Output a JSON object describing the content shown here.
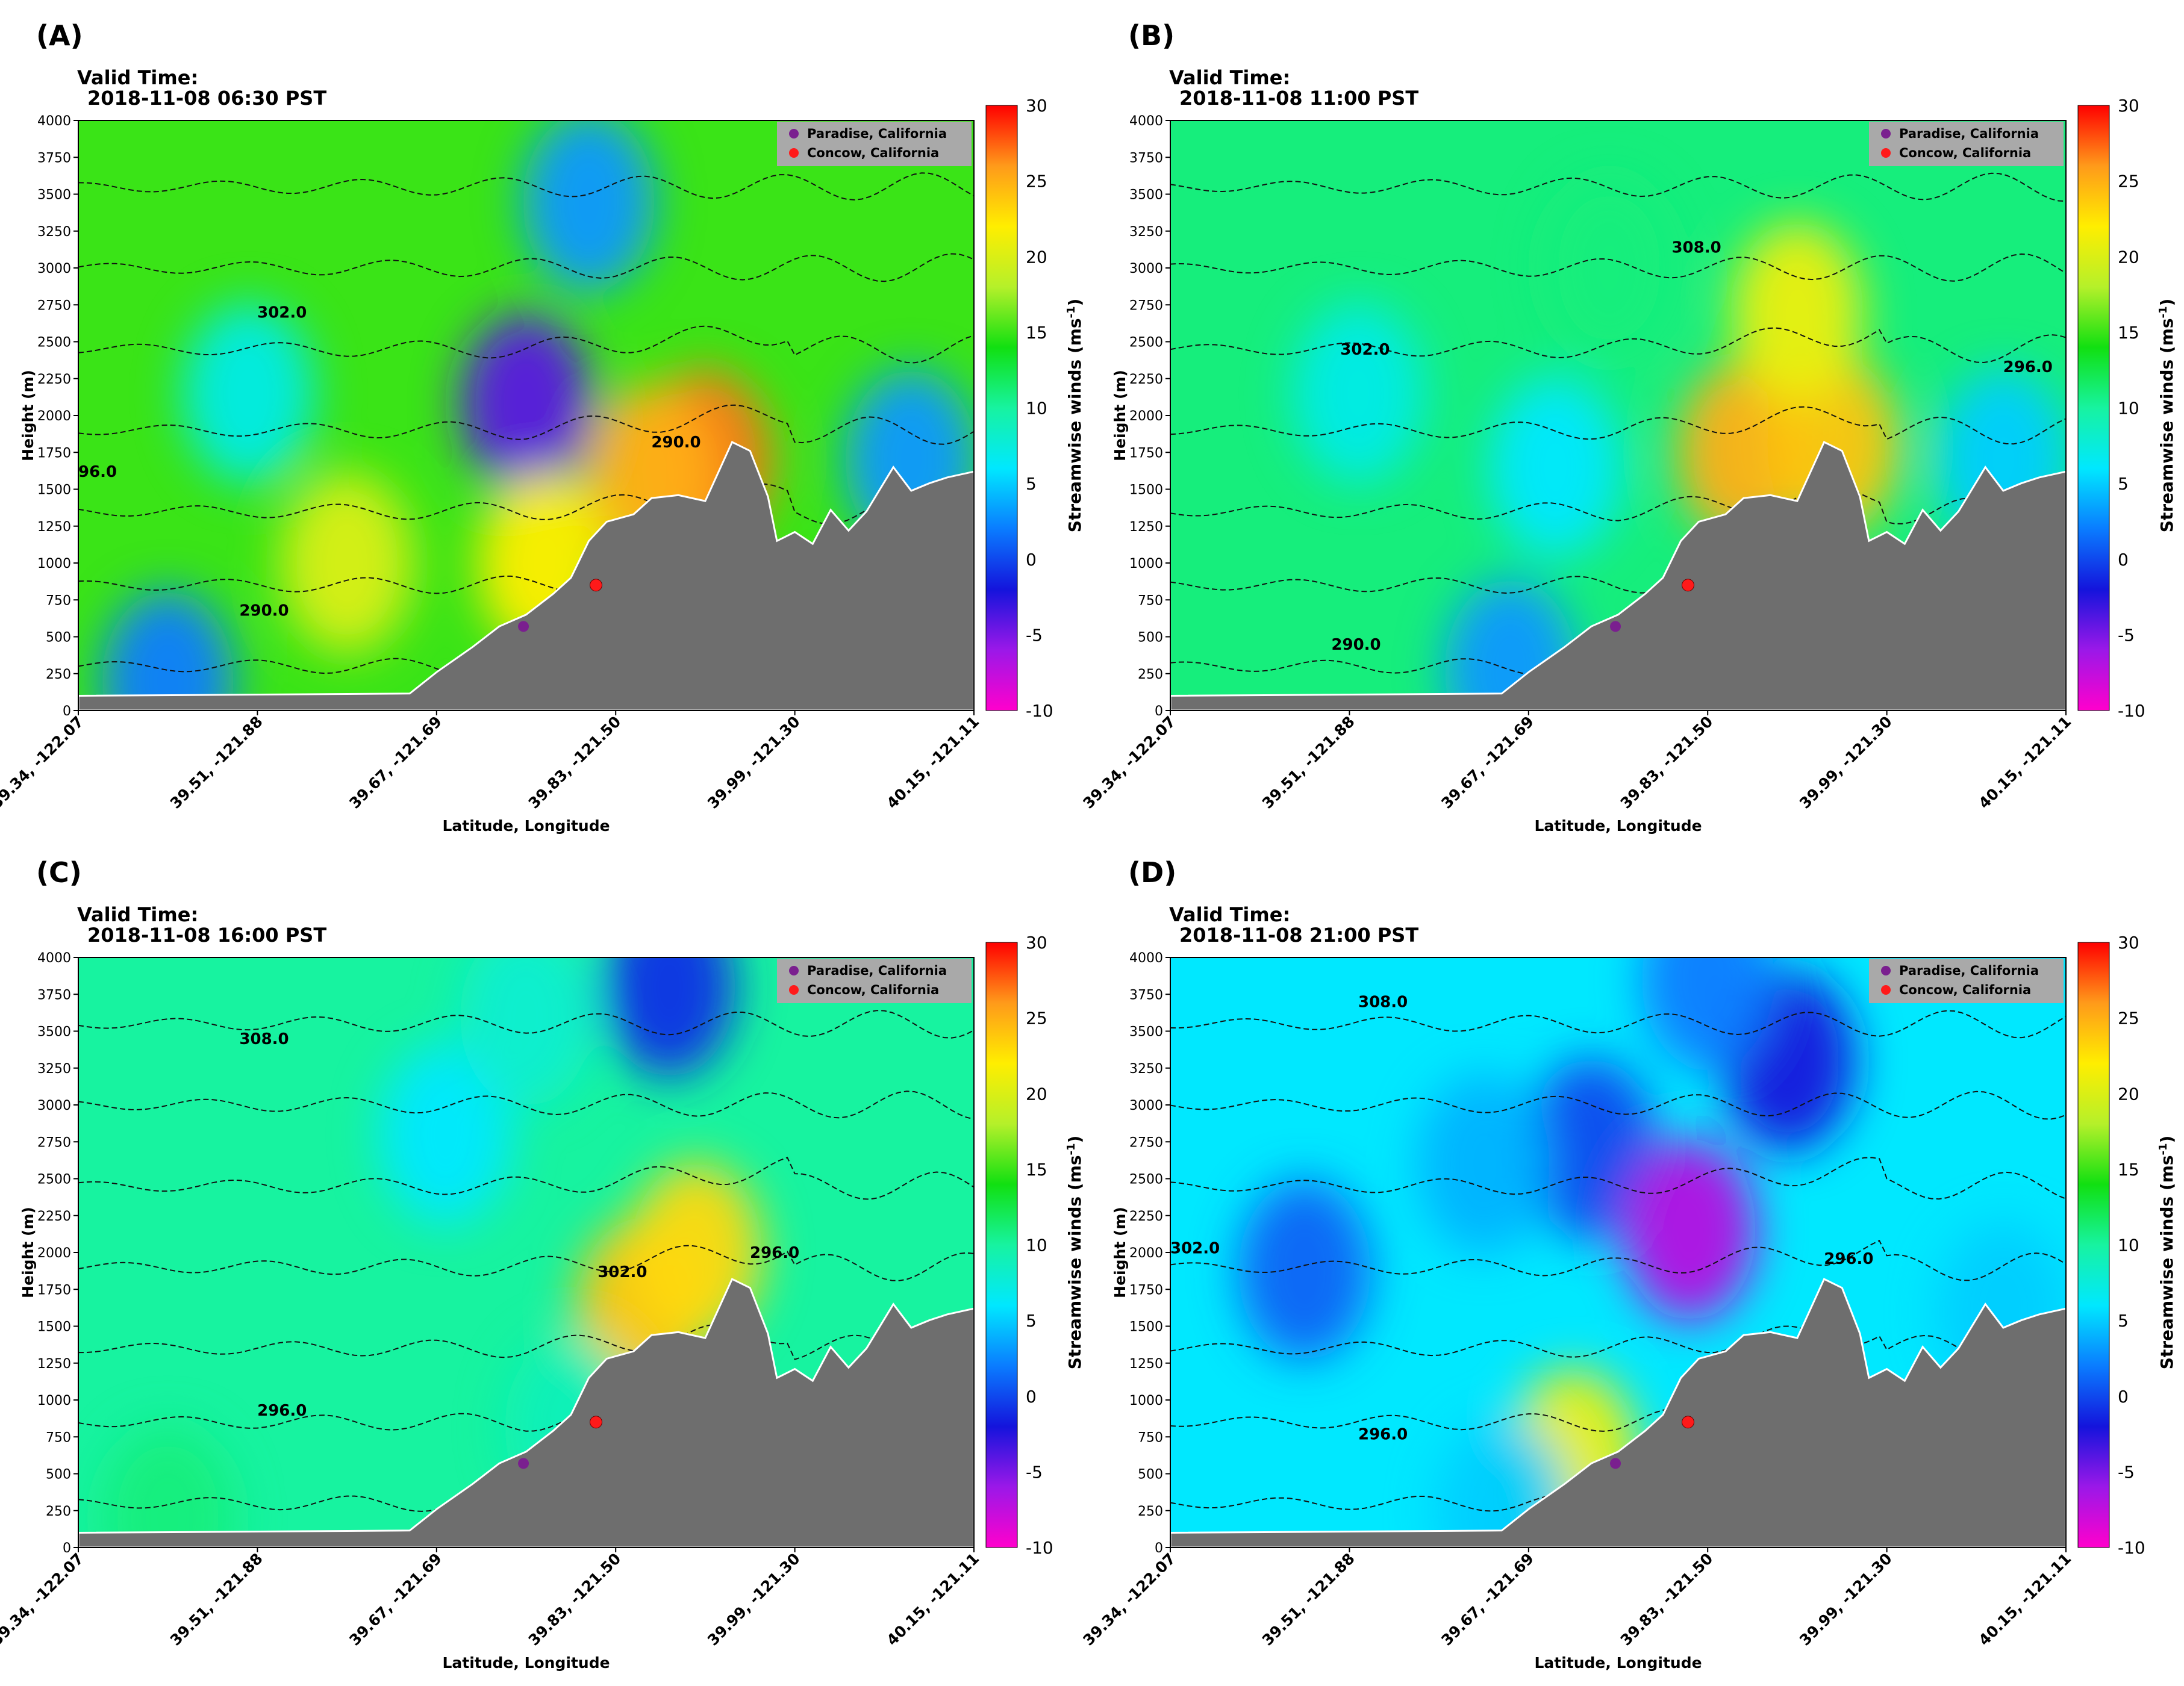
{
  "colors": {
    "terrain": "#6e6e6e",
    "paradise_marker": "#7a1f8f",
    "concow_marker": "#ff1a1a",
    "legend_bg": "#a9a9a9",
    "contour": "#111111"
  },
  "shared": {
    "colorbar_label": "Streamwise winds (ms",
    "colorbar_label_sup": "-1",
    "colorbar_label_close": ")",
    "colorbar_ticks": [
      -10,
      -5,
      0,
      5,
      10,
      15,
      20,
      25,
      30
    ],
    "colormap": [
      "#ff00cc",
      "#9b18e8",
      "#1414dc",
      "#0a7cff",
      "#00e8ff",
      "#17f3a0",
      "#11e011",
      "#b5f02a",
      "#ffee00",
      "#ff9a1a",
      "#ff0000"
    ],
    "y_ticks": [
      0,
      250,
      500,
      750,
      1000,
      1250,
      1500,
      1750,
      2000,
      2250,
      2500,
      2750,
      3000,
      3250,
      3500,
      3750,
      4000
    ],
    "x_ticks": [
      "39.34, -122.07",
      "39.51, -121.88",
      "39.67, -121.69",
      "39.83, -121.50",
      "39.99, -121.30",
      "40.15, -121.11"
    ],
    "xlabel": "Latitude, Longitude",
    "ylabel": "Height (m)",
    "valid_time_label": "Valid Time:",
    "legend": [
      "Paradise, California",
      "Concow, California"
    ]
  },
  "chart_data": [
    {
      "type": "heatmap",
      "panel": "(A)",
      "valid_time": "2018-11-08 06:30 PST",
      "ylim": [
        0,
        4000
      ],
      "contour_labels": [
        {
          "text": "302.0",
          "x": 0.22,
          "y": 2700
        },
        {
          "text": "290.0",
          "x": 0.2,
          "y": 680
        },
        {
          "text": "290.0",
          "x": 0.66,
          "y": 1820
        },
        {
          "text": "96.0",
          "x": 0.0,
          "y": 1620
        }
      ],
      "features": [
        {
          "x": 0.5,
          "y": 2080,
          "wind": -4
        },
        {
          "x": 0.57,
          "y": 3450,
          "wind": 3
        },
        {
          "x": 0.19,
          "y": 2150,
          "wind": 7
        },
        {
          "x": 0.7,
          "y": 1700,
          "wind": 27
        },
        {
          "x": 0.64,
          "y": 1600,
          "wind": 25
        },
        {
          "x": 0.52,
          "y": 1000,
          "wind": 22
        },
        {
          "x": 0.93,
          "y": 1700,
          "wind": 3
        },
        {
          "x": 0.3,
          "y": 1000,
          "wind": 20
        },
        {
          "x": 0.1,
          "y": 200,
          "wind": 2
        }
      ]
    },
    {
      "type": "heatmap",
      "panel": "(B)",
      "valid_time": "2018-11-08 11:00 PST",
      "ylim": [
        0,
        4000
      ],
      "contour_labels": [
        {
          "text": "302.0",
          "x": 0.21,
          "y": 2450
        },
        {
          "text": "308.0",
          "x": 0.58,
          "y": 3140
        },
        {
          "text": "290.0",
          "x": 0.2,
          "y": 450
        },
        {
          "text": "296.0",
          "x": 0.95,
          "y": 2330
        }
      ],
      "features": [
        {
          "x": 0.21,
          "y": 2150,
          "wind": 7
        },
        {
          "x": 0.43,
          "y": 1650,
          "wind": 6
        },
        {
          "x": 0.64,
          "y": 1750,
          "wind": 25
        },
        {
          "x": 0.74,
          "y": 1800,
          "wind": 24
        },
        {
          "x": 0.7,
          "y": 2700,
          "wind": 21
        },
        {
          "x": 0.49,
          "y": 3000,
          "wind": 11
        },
        {
          "x": 0.38,
          "y": 280,
          "wind": 3
        },
        {
          "x": 0.93,
          "y": 1700,
          "wind": 5
        }
      ]
    },
    {
      "type": "heatmap",
      "panel": "(C)",
      "valid_time": "2018-11-08 16:00 PST",
      "ylim": [
        0,
        4000
      ],
      "contour_labels": [
        {
          "text": "308.0",
          "x": 0.2,
          "y": 3450
        },
        {
          "text": "302.0",
          "x": 0.6,
          "y": 1870
        },
        {
          "text": "296.0",
          "x": 0.77,
          "y": 2000
        },
        {
          "text": "296.0",
          "x": 0.22,
          "y": 930
        }
      ],
      "features": [
        {
          "x": 0.66,
          "y": 3800,
          "wind": -1
        },
        {
          "x": 0.41,
          "y": 2800,
          "wind": 6
        },
        {
          "x": 0.63,
          "y": 1620,
          "wind": 24
        },
        {
          "x": 0.69,
          "y": 2000,
          "wind": 23
        },
        {
          "x": 0.5,
          "y": 3600,
          "wind": 8
        },
        {
          "x": 0.55,
          "y": 820,
          "wind": 9
        },
        {
          "x": 0.1,
          "y": 200,
          "wind": 11
        }
      ]
    },
    {
      "type": "heatmap",
      "panel": "(D)",
      "valid_time": "2018-11-08 21:00 PST",
      "ylim": [
        0,
        4000
      ],
      "contour_labels": [
        {
          "text": "308.0",
          "x": 0.23,
          "y": 3700
        },
        {
          "text": "302.0",
          "x": 0.0,
          "y": 2030
        },
        {
          "text": "296.0",
          "x": 0.23,
          "y": 770
        },
        {
          "text": "296.0",
          "x": 0.75,
          "y": 1960
        }
      ],
      "features": [
        {
          "x": 0.15,
          "y": 1880,
          "wind": 1
        },
        {
          "x": 0.47,
          "y": 2700,
          "wind": 0
        },
        {
          "x": 0.58,
          "y": 2150,
          "wind": -7
        },
        {
          "x": 0.69,
          "y": 3300,
          "wind": -2
        },
        {
          "x": 0.6,
          "y": 3850,
          "wind": 2
        },
        {
          "x": 0.35,
          "y": 2600,
          "wind": 4
        },
        {
          "x": 0.45,
          "y": 600,
          "wind": 21
        },
        {
          "x": 0.37,
          "y": 250,
          "wind": 5
        },
        {
          "x": 0.93,
          "y": 1600,
          "wind": 5
        }
      ]
    }
  ],
  "terrain_profile": [
    [
      0.0,
      100
    ],
    [
      0.37,
      115
    ],
    [
      0.4,
      260
    ],
    [
      0.44,
      430
    ],
    [
      0.47,
      570
    ],
    [
      0.5,
      650
    ],
    [
      0.53,
      790
    ],
    [
      0.55,
      900
    ],
    [
      0.57,
      1150
    ],
    [
      0.59,
      1280
    ],
    [
      0.62,
      1330
    ],
    [
      0.64,
      1440
    ],
    [
      0.67,
      1460
    ],
    [
      0.7,
      1420
    ],
    [
      0.73,
      1820
    ],
    [
      0.75,
      1760
    ],
    [
      0.77,
      1450
    ],
    [
      0.78,
      1150
    ],
    [
      0.8,
      1210
    ],
    [
      0.82,
      1130
    ],
    [
      0.84,
      1360
    ],
    [
      0.86,
      1220
    ],
    [
      0.88,
      1350
    ],
    [
      0.91,
      1650
    ],
    [
      0.93,
      1490
    ],
    [
      0.95,
      1540
    ],
    [
      0.97,
      1580
    ],
    [
      1.0,
      1620
    ]
  ],
  "markers": {
    "paradise": {
      "x": 0.497,
      "y": 570
    },
    "concow": {
      "x": 0.578,
      "y": 850
    }
  }
}
